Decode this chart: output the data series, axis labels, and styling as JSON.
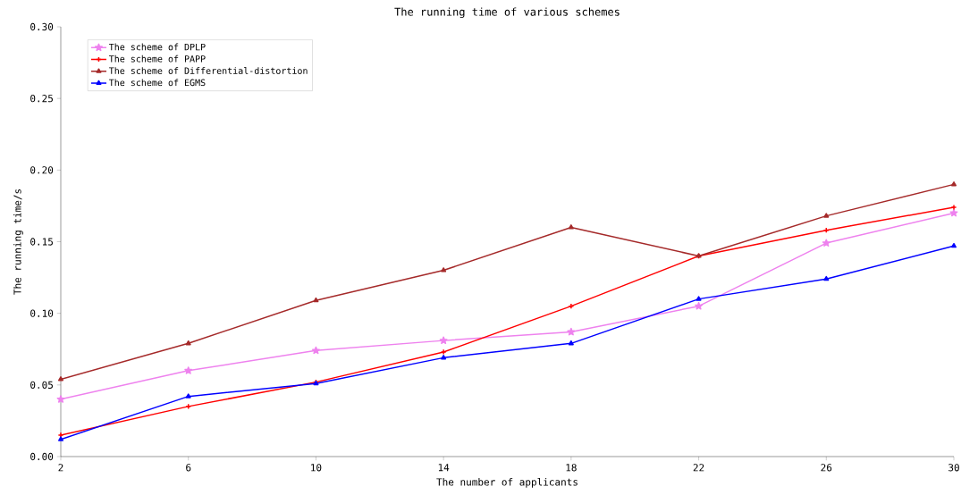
{
  "chart_data": {
    "type": "line",
    "title": "The running time of various schemes",
    "xlabel": "The number of applicants",
    "ylabel": "The running time/s",
    "x": [
      2,
      6,
      10,
      14,
      18,
      22,
      26,
      30
    ],
    "series": [
      {
        "name": "The scheme of DPLP",
        "color": "#ee82ee",
        "marker": "star",
        "values": [
          0.04,
          0.06,
          0.074,
          0.081,
          0.087,
          0.105,
          0.149,
          0.17
        ]
      },
      {
        "name": "The scheme of PAPP",
        "color": "#ff0000",
        "marker": "cross",
        "values": [
          0.015,
          0.035,
          0.052,
          0.073,
          0.105,
          0.14,
          0.158,
          0.174
        ]
      },
      {
        "name": "The scheme of Differential-distortion",
        "color": "#a52a2a",
        "marker": "triangle",
        "values": [
          0.054,
          0.079,
          0.109,
          0.13,
          0.16,
          0.14,
          0.168,
          0.19
        ]
      },
      {
        "name": "The scheme of EGMS",
        "color": "#0000ff",
        "marker": "triangle",
        "values": [
          0.012,
          0.042,
          0.051,
          0.069,
          0.079,
          0.11,
          0.124,
          0.147
        ]
      }
    ],
    "xlim": [
      2,
      30
    ],
    "ylim": [
      0,
      0.3
    ],
    "xticks": [
      2,
      6,
      10,
      14,
      18,
      22,
      26,
      30
    ],
    "yticks": [
      {
        "value": 0,
        "label": "0.00"
      },
      {
        "value": 0.05,
        "label": "0.05"
      },
      {
        "value": 0.1,
        "label": "0.10"
      },
      {
        "value": 0.15,
        "label": "0.15"
      },
      {
        "value": 0.2,
        "label": "0.20"
      },
      {
        "value": 0.25,
        "label": "0.25"
      },
      {
        "value": 0.3,
        "label": "0.30"
      }
    ],
    "legend": "top left",
    "grid": false,
    "line_style": "solid"
  }
}
